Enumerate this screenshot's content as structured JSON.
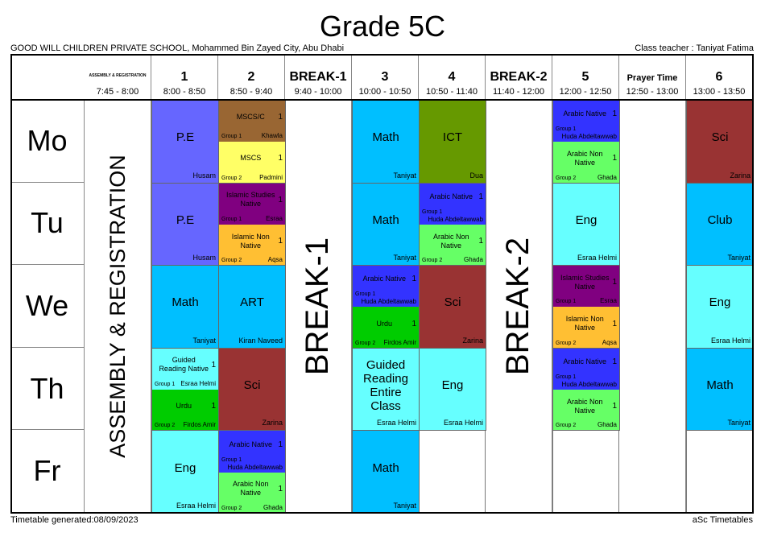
{
  "title": "Grade 5C",
  "school": "GOOD WILL CHILDREN PRIVATE SCHOOL, Mohammed Bin Zayed City, Abu Dhabi",
  "class_teacher": "Class teacher : Taniyat Fatima",
  "footer_left": "Timetable generated:08/09/2023",
  "footer_right": "aSc Timetables",
  "columns": [
    {
      "label": "ASSEMBLY & REGISTRATION",
      "time": "7:45 - 8:00",
      "kind": "assembly"
    },
    {
      "label": "1",
      "time": "8:00 - 8:50",
      "kind": "period"
    },
    {
      "label": "2",
      "time": "8:50 - 9:40",
      "kind": "period"
    },
    {
      "label": "BREAK-1",
      "time": "9:40 - 10:00",
      "kind": "break"
    },
    {
      "label": "3",
      "time": "10:00 - 10:50",
      "kind": "period"
    },
    {
      "label": "4",
      "time": "10:50 - 11:40",
      "kind": "period"
    },
    {
      "label": "BREAK-2",
      "time": "11:40 - 12:00",
      "kind": "break"
    },
    {
      "label": "5",
      "time": "12:00 - 12:50",
      "kind": "period"
    },
    {
      "label": "Prayer Time",
      "time": "12:50 - 13:00",
      "kind": "prayer"
    },
    {
      "label": "6",
      "time": "13:00 - 13:50",
      "kind": "period"
    }
  ],
  "days": [
    "Mo",
    "Tu",
    "We",
    "Th",
    "Fr"
  ],
  "colors": {
    "P.E": "#6666ff",
    "Math": "#00bfff",
    "ICT": "#669900",
    "Sci": "#993333",
    "ART": "#00bfff",
    "Eng": "#66ffff",
    "Club": "#00bfff",
    "Guided Reading Entire Class": "#66ffff",
    "MSCS/C": "#996633",
    "MSCS": "#ffff66",
    "Arabic Native": "#3333ff",
    "Arabic Non Native": "#66ff66",
    "Islamic Studies Native": "#800080",
    "Islamic Non Native": "#ffbf33",
    "Urdu": "#00cc00",
    "Guided Reading Native": "#66ffff"
  },
  "lessons": [
    {
      "day": 0,
      "col": 1,
      "subject": "P.E",
      "teacher": "Husam"
    },
    {
      "day": 0,
      "col": 2,
      "parts": [
        {
          "subject": "MSCS/C",
          "count": "1",
          "group": "Group 1",
          "teacher": "Khawla"
        },
        {
          "subject": "MSCS",
          "count": "1",
          "group": "Group 2",
          "teacher": "Padmini"
        }
      ]
    },
    {
      "day": 0,
      "col": 4,
      "subject": "Math",
      "teacher": "Taniyat"
    },
    {
      "day": 0,
      "col": 5,
      "subject": "ICT",
      "teacher": "Dua"
    },
    {
      "day": 0,
      "col": 7,
      "parts": [
        {
          "subject": "Arabic Native",
          "count": "1",
          "group": "Group 1",
          "teacher": "Huda Abdeltawwab"
        },
        {
          "subject": "Arabic Non Native",
          "count": "1",
          "group": "Group 2",
          "teacher": "Ghada"
        }
      ]
    },
    {
      "day": 0,
      "col": 9,
      "subject": "Sci",
      "teacher": "Zarina"
    },
    {
      "day": 1,
      "col": 1,
      "subject": "P.E",
      "teacher": "Husam"
    },
    {
      "day": 1,
      "col": 2,
      "parts": [
        {
          "subject": "Islamic Studies Native",
          "count": "1",
          "group": "Group 1",
          "teacher": "Esraa"
        },
        {
          "subject": "Islamic Non Native",
          "count": "1",
          "group": "Group 2",
          "teacher": "Aqsa"
        }
      ]
    },
    {
      "day": 1,
      "col": 4,
      "subject": "Math",
      "teacher": "Taniyat"
    },
    {
      "day": 1,
      "col": 5,
      "parts": [
        {
          "subject": "Arabic Native",
          "count": "1",
          "group": "Group 1",
          "teacher": "Huda Abdeltawwab"
        },
        {
          "subject": "Arabic Non Native",
          "count": "1",
          "group": "Group 2",
          "teacher": "Ghada"
        }
      ]
    },
    {
      "day": 1,
      "col": 7,
      "subject": "Eng",
      "teacher": "Esraa Helmi"
    },
    {
      "day": 1,
      "col": 9,
      "subject": "Club",
      "teacher": "Taniyat"
    },
    {
      "day": 2,
      "col": 1,
      "subject": "Math",
      "teacher": "Taniyat"
    },
    {
      "day": 2,
      "col": 2,
      "subject": "ART",
      "teacher": "Kiran Naveed"
    },
    {
      "day": 2,
      "col": 4,
      "parts": [
        {
          "subject": "Arabic Native",
          "count": "1",
          "group": "Group 1",
          "teacher": "Huda Abdeltawwab"
        },
        {
          "subject": "Urdu",
          "count": "1",
          "group": "Group 2",
          "teacher": "Firdos Amir"
        }
      ]
    },
    {
      "day": 2,
      "col": 5,
      "subject": "Sci",
      "teacher": "Zarina"
    },
    {
      "day": 2,
      "col": 7,
      "parts": [
        {
          "subject": "Islamic Studies Native",
          "count": "1",
          "group": "Group 1",
          "teacher": "Esraa"
        },
        {
          "subject": "Islamic Non Native",
          "count": "1",
          "group": "Group 2",
          "teacher": "Aqsa"
        }
      ]
    },
    {
      "day": 2,
      "col": 9,
      "subject": "Eng",
      "teacher": "Esraa Helmi"
    },
    {
      "day": 3,
      "col": 1,
      "parts": [
        {
          "subject": "Guided Reading Native",
          "count": "1",
          "group": "Group 1",
          "teacher": "Esraa Helmi"
        },
        {
          "subject": "Urdu",
          "count": "1",
          "group": "Group 2",
          "teacher": "Firdos Amir"
        }
      ]
    },
    {
      "day": 3,
      "col": 2,
      "subject": "Sci",
      "teacher": "Zarina"
    },
    {
      "day": 3,
      "col": 4,
      "subject": "Guided Reading Entire Class",
      "teacher": "Esraa Helmi"
    },
    {
      "day": 3,
      "col": 5,
      "subject": "Eng",
      "teacher": "Esraa Helmi"
    },
    {
      "day": 3,
      "col": 7,
      "parts": [
        {
          "subject": "Arabic Native",
          "count": "1",
          "group": "Group 1",
          "teacher": "Huda Abdeltawwab"
        },
        {
          "subject": "Arabic Non Native",
          "count": "1",
          "group": "Group 2",
          "teacher": "Ghada"
        }
      ]
    },
    {
      "day": 3,
      "col": 9,
      "subject": "Math",
      "teacher": "Taniyat"
    },
    {
      "day": 4,
      "col": 1,
      "subject": "Eng",
      "teacher": "Esraa Helmi"
    },
    {
      "day": 4,
      "col": 2,
      "parts": [
        {
          "subject": "Arabic Native",
          "count": "1",
          "group": "Group 1",
          "teacher": "Huda Abdeltawwab"
        },
        {
          "subject": "Arabic Non Native",
          "count": "1",
          "group": "Group 2",
          "teacher": "Ghada"
        }
      ]
    },
    {
      "day": 4,
      "col": 4,
      "subject": "Math",
      "teacher": "Taniyat"
    }
  ]
}
